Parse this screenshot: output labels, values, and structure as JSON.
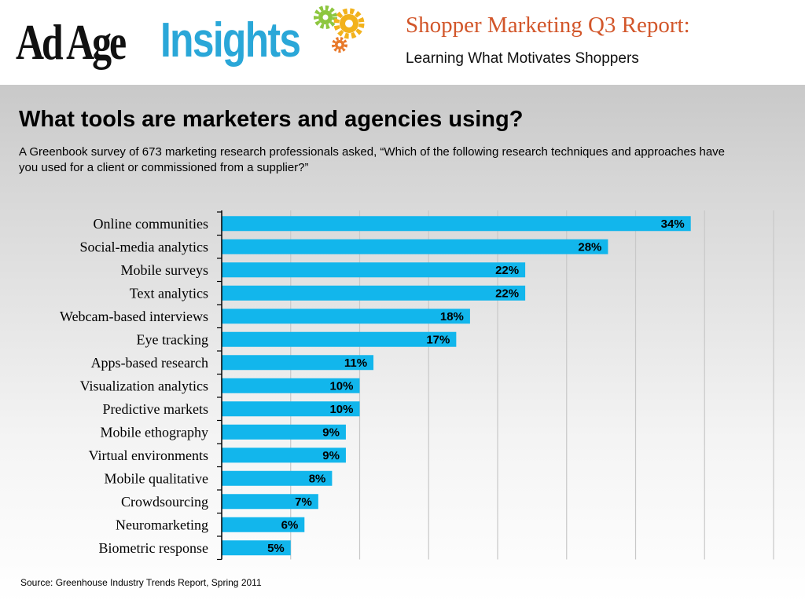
{
  "header": {
    "logo_adage": "Ad Age",
    "logo_insights": "Insights",
    "report_title": "Shopper Marketing Q3 Report:",
    "report_subtitle": "Learning What Motivates Shoppers"
  },
  "headline": "What tools are marketers and agencies using?",
  "description": "A Greenbook survey of 673 marketing research professionals asked, “Which of the following research techniques and approaches have you used for a client or commissioned from a supplier?”",
  "source": "Source: Greenhouse Industry Trends Report, Spring 2011",
  "colors": {
    "bar": "#12b6ec",
    "gear_green": "#8dc63f",
    "gear_gold": "#f2b21c",
    "gear_orange": "#e8792a"
  },
  "chart_data": {
    "type": "bar",
    "orientation": "horizontal",
    "categories": [
      "Online communities",
      "Social-media analytics",
      "Mobile surveys",
      "Text analytics",
      "Webcam-based interviews",
      "Eye tracking",
      "Apps-based research",
      "Visualization analytics",
      "Predictive markets",
      "Mobile ethography",
      "Virtual environments",
      "Mobile qualitative",
      "Crowdsourcing",
      "Neuromarketing",
      "Biometric response"
    ],
    "values": [
      34,
      28,
      22,
      22,
      18,
      17,
      11,
      10,
      10,
      9,
      9,
      8,
      7,
      6,
      5
    ],
    "value_labels": [
      "34%",
      "28%",
      "22%",
      "22%",
      "18%",
      "17%",
      "11%",
      "10%",
      "10%",
      "9%",
      "9%",
      "8%",
      "7%",
      "6%",
      "5%"
    ],
    "xlim": [
      0,
      40
    ],
    "grid": true,
    "legend": "none"
  }
}
